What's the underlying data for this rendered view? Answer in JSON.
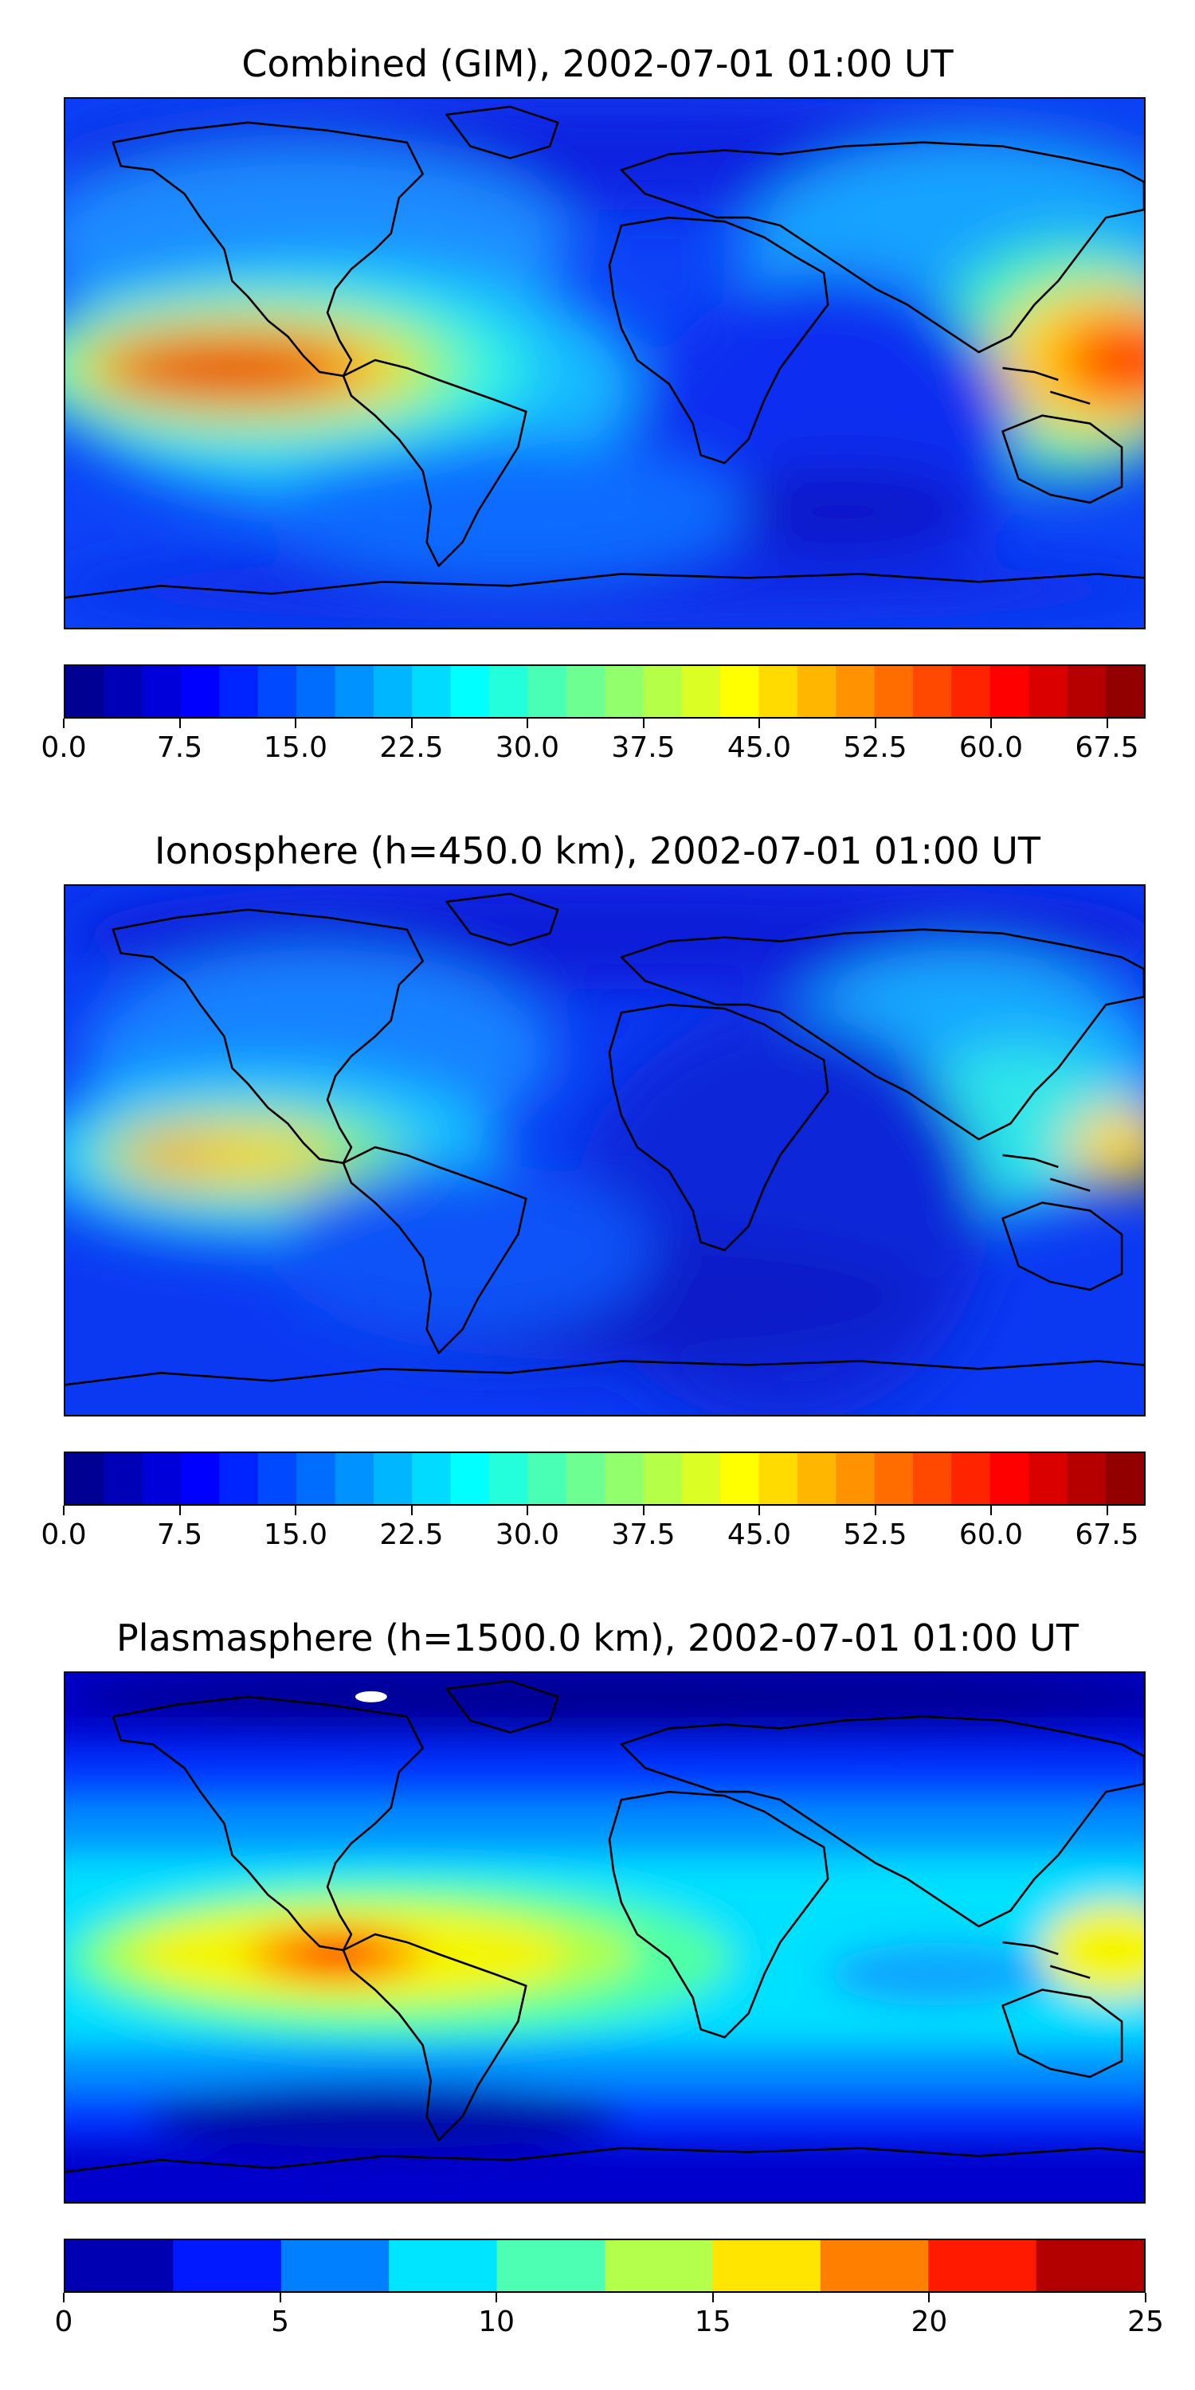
{
  "panels": [
    {
      "title": "Combined (GIM), 2002-07-01 01:00 UT",
      "colorbar": {
        "colormap": "jet",
        "min": 0,
        "max": 70,
        "levels": 28,
        "tick_labels": [
          "0.0",
          "7.5",
          "15.0",
          "22.5",
          "30.0",
          "37.5",
          "45.0",
          "52.5",
          "60.0",
          "67.5"
        ],
        "tick_values": [
          0,
          7.5,
          15,
          22.5,
          30,
          37.5,
          45,
          52.5,
          60,
          67.5
        ]
      }
    },
    {
      "title": "Ionosphere  (h=450.0 km), 2002-07-01 01:00 UT",
      "colorbar": {
        "colormap": "jet",
        "min": 0,
        "max": 70,
        "levels": 28,
        "tick_labels": [
          "0.0",
          "7.5",
          "15.0",
          "22.5",
          "30.0",
          "37.5",
          "45.0",
          "52.5",
          "60.0",
          "67.5"
        ],
        "tick_values": [
          0,
          7.5,
          15,
          22.5,
          30,
          37.5,
          45,
          52.5,
          60,
          67.5
        ]
      }
    },
    {
      "title": "Plasmasphere (h=1500.0 km), 2002-07-01 01:00 UT",
      "colorbar": {
        "colormap": "jet",
        "min": 0,
        "max": 25,
        "levels": 10,
        "tick_labels": [
          "0",
          "5",
          "10",
          "15",
          "20",
          "25"
        ],
        "tick_values": [
          0,
          5,
          10,
          15,
          20,
          25
        ]
      }
    }
  ]
}
